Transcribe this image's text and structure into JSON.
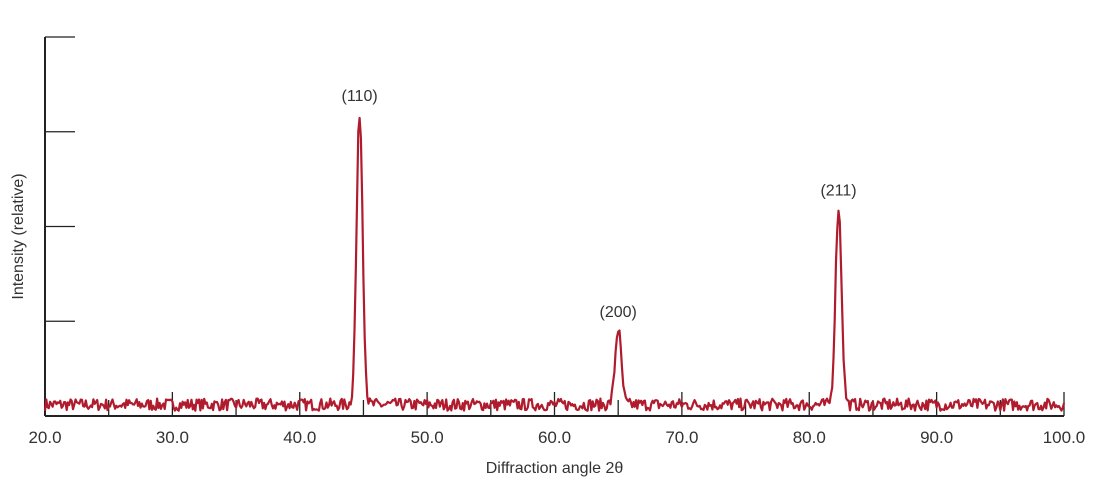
{
  "chart_data": {
    "type": "line",
    "xlabel": "Diffraction angle 2θ",
    "ylabel": "Intensity (relative)",
    "xlim": [
      20,
      100
    ],
    "ylim": [
      0,
      100
    ],
    "x_tick_labels": [
      "20.0",
      "30.0",
      "40.0",
      "50.0",
      "60.0",
      "70.0",
      "80.0",
      "90.0",
      "100.0"
    ],
    "x_ticks": [
      20,
      30,
      40,
      50,
      60,
      70,
      80,
      90,
      100
    ],
    "x_minor_ticks": [
      25,
      35,
      45,
      55,
      65,
      75,
      85,
      95
    ],
    "y_ticks": [
      25,
      50,
      75,
      100
    ],
    "show_y_tick_labels": false,
    "grid": false,
    "baseline": 3.0,
    "noise_amplitude": 1.6,
    "peaks": [
      {
        "label": "(110)",
        "x": 44.7,
        "y": 80
      },
      {
        "label": "(200)",
        "x": 65.0,
        "y": 23
      },
      {
        "label": "(211)",
        "x": 82.3,
        "y": 55
      }
    ],
    "line_color": "#b01c2e",
    "axis_color": "#222222"
  }
}
